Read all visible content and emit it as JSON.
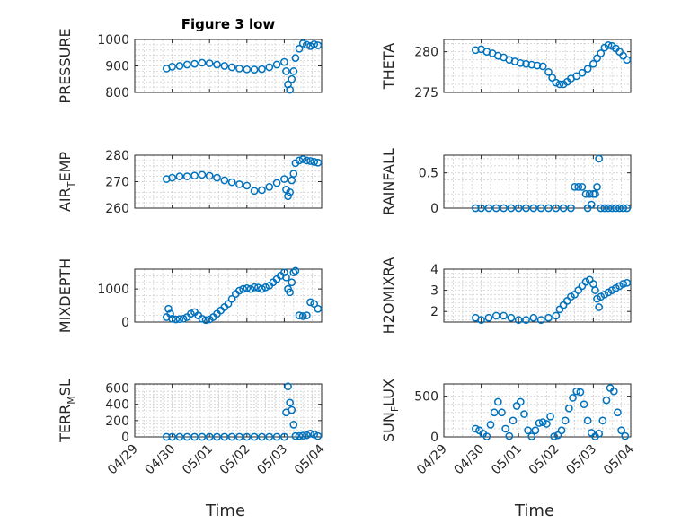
{
  "colors": {
    "marker": "#0072BD",
    "axis": "#262626",
    "grid": "#d0d0d0"
  },
  "figure_title": "Figure 3 low",
  "xlabel": "Time",
  "chart_data": [
    {
      "type": "scatter",
      "id": "pressure",
      "title": "Figure 3 low",
      "ylabel": [
        "PRESSURE"
      ],
      "xlim": [
        "04/29",
        "05/04"
      ],
      "ylim": [
        800,
        1000
      ],
      "yticks": [
        800,
        900,
        1000
      ],
      "xticks": [
        "04/29",
        "04/30",
        "05/01",
        "05/02",
        "05/03",
        "05/04"
      ],
      "series": [
        {
          "x_days": [
            0.85,
            1.0,
            1.2,
            1.4,
            1.6,
            1.8,
            2.0,
            2.2,
            2.4,
            2.6,
            2.8,
            3.0,
            3.2,
            3.4,
            3.6,
            3.8,
            4.0,
            4.05,
            4.1,
            4.15,
            4.2,
            4.25,
            4.3,
            4.4,
            4.5,
            4.6,
            4.7,
            4.8,
            4.9
          ],
          "y": [
            890,
            897,
            900,
            905,
            908,
            912,
            910,
            905,
            900,
            895,
            890,
            887,
            886,
            888,
            895,
            905,
            915,
            880,
            830,
            810,
            850,
            880,
            930,
            965,
            985,
            980,
            975,
            982,
            978
          ]
        }
      ]
    },
    {
      "type": "scatter",
      "id": "theta",
      "ylabel": [
        "THETA"
      ],
      "xlim": [
        "04/29",
        "05/04"
      ],
      "ylim": [
        275,
        281.5
      ],
      "yticks": [
        275,
        280
      ],
      "xticks": [
        "04/29",
        "04/30",
        "05/01",
        "05/02",
        "05/03",
        "05/04"
      ],
      "series": [
        {
          "x_days": [
            0.85,
            1.0,
            1.15,
            1.3,
            1.45,
            1.6,
            1.75,
            1.9,
            2.05,
            2.2,
            2.35,
            2.5,
            2.65,
            2.8,
            2.9,
            3.0,
            3.1,
            3.2,
            3.3,
            3.4,
            3.55,
            3.7,
            3.85,
            4.0,
            4.1,
            4.2,
            4.3,
            4.4,
            4.5,
            4.6,
            4.7,
            4.8,
            4.9
          ],
          "y": [
            280.2,
            280.3,
            280.0,
            279.8,
            279.5,
            279.3,
            279.0,
            278.8,
            278.6,
            278.5,
            278.4,
            278.3,
            278.2,
            277.5,
            276.8,
            276.2,
            276.0,
            276.0,
            276.3,
            276.7,
            277.0,
            277.4,
            277.9,
            278.5,
            279.2,
            279.8,
            280.5,
            280.8,
            280.7,
            280.4,
            280.0,
            279.5,
            279.0
          ]
        }
      ]
    },
    {
      "type": "scatter",
      "id": "air_temp",
      "ylabel": [
        "AIR",
        "T",
        "EMP"
      ],
      "xlim": [
        "04/29",
        "05/04"
      ],
      "ylim": [
        260,
        280
      ],
      "yticks": [
        260,
        270,
        280
      ],
      "xticks": [
        "04/29",
        "04/30",
        "05/01",
        "05/02",
        "05/03",
        "05/04"
      ],
      "series": [
        {
          "x_days": [
            0.85,
            1.0,
            1.2,
            1.4,
            1.6,
            1.8,
            2.0,
            2.2,
            2.4,
            2.6,
            2.8,
            3.0,
            3.2,
            3.4,
            3.6,
            3.8,
            4.0,
            4.05,
            4.1,
            4.15,
            4.2,
            4.25,
            4.3,
            4.4,
            4.5,
            4.6,
            4.7,
            4.8,
            4.9
          ],
          "y": [
            271,
            271.5,
            272,
            272,
            272.3,
            272.6,
            272.2,
            271.5,
            270.5,
            269.8,
            269,
            268.5,
            266.5,
            266.8,
            268,
            269.5,
            271,
            267,
            264.5,
            266,
            270.5,
            273,
            277,
            278,
            278.5,
            278,
            277.8,
            277.5,
            277.2
          ]
        }
      ]
    },
    {
      "type": "scatter",
      "id": "rainfall",
      "ylabel": [
        "RAINFALL"
      ],
      "xlim": [
        "04/29",
        "05/04"
      ],
      "ylim": [
        0,
        0.75
      ],
      "yticks": [
        0,
        0.5
      ],
      "xticks": [
        "04/29",
        "04/30",
        "05/01",
        "05/02",
        "05/03",
        "05/04"
      ],
      "series": [
        {
          "x_days": [
            0.85,
            1.0,
            1.2,
            1.4,
            1.6,
            1.8,
            2.0,
            2.2,
            2.4,
            2.6,
            2.8,
            3.0,
            3.2,
            3.4,
            3.5,
            3.6,
            3.7,
            3.8,
            3.85,
            3.9,
            3.95,
            4.0,
            4.05,
            4.1,
            4.15,
            4.2,
            4.3,
            4.4,
            4.5,
            4.6,
            4.7,
            4.8,
            4.9
          ],
          "y": [
            0,
            0,
            0,
            0,
            0,
            0,
            0,
            0,
            0,
            0,
            0,
            0,
            0,
            0,
            0.3,
            0.3,
            0.3,
            0.2,
            0,
            0.2,
            0.05,
            0.2,
            0.2,
            0.3,
            0.7,
            0,
            0,
            0,
            0,
            0,
            0,
            0,
            0
          ]
        }
      ]
    },
    {
      "type": "scatter",
      "id": "mixdepth",
      "ylabel": [
        "MIXDEPTH"
      ],
      "xlim": [
        "04/29",
        "05/04"
      ],
      "ylim": [
        0,
        1600
      ],
      "yticks": [
        0,
        1000
      ],
      "xticks": [
        "04/29",
        "04/30",
        "05/01",
        "05/02",
        "05/03",
        "05/04"
      ],
      "series": [
        {
          "x_days": [
            0.85,
            0.9,
            0.95,
            1.0,
            1.1,
            1.2,
            1.3,
            1.4,
            1.5,
            1.6,
            1.7,
            1.8,
            1.9,
            2.0,
            2.1,
            2.2,
            2.3,
            2.4,
            2.5,
            2.6,
            2.7,
            2.8,
            2.9,
            3.0,
            3.1,
            3.2,
            3.3,
            3.4,
            3.5,
            3.6,
            3.7,
            3.8,
            3.9,
            4.0,
            4.05,
            4.1,
            4.15,
            4.2,
            4.25,
            4.3,
            4.4,
            4.5,
            4.6,
            4.7,
            4.8,
            4.9
          ],
          "y": [
            150,
            400,
            250,
            100,
            80,
            90,
            100,
            150,
            250,
            300,
            200,
            100,
            60,
            80,
            150,
            250,
            350,
            450,
            550,
            700,
            850,
            950,
            1000,
            1020,
            1000,
            1050,
            1040,
            1000,
            1050,
            1100,
            1200,
            1300,
            1400,
            1500,
            1350,
            1000,
            900,
            1200,
            1500,
            1550,
            200,
            180,
            200,
            600,
            550,
            400
          ]
        }
      ]
    },
    {
      "type": "scatter",
      "id": "h2omixra",
      "ylabel": [
        "H2OMIXRA"
      ],
      "xlim": [
        "04/29",
        "05/04"
      ],
      "ylim": [
        1.5,
        4.0
      ],
      "yticks": [
        2,
        3,
        4
      ],
      "xticks": [
        "04/29",
        "04/30",
        "05/01",
        "05/02",
        "05/03",
        "05/04"
      ],
      "series": [
        {
          "x_days": [
            0.85,
            1.0,
            1.2,
            1.4,
            1.6,
            1.8,
            2.0,
            2.2,
            2.4,
            2.6,
            2.8,
            3.0,
            3.1,
            3.2,
            3.3,
            3.4,
            3.5,
            3.6,
            3.7,
            3.8,
            3.9,
            4.0,
            4.05,
            4.1,
            4.15,
            4.2,
            4.3,
            4.4,
            4.5,
            4.6,
            4.7,
            4.8,
            4.9
          ],
          "y": [
            1.7,
            1.6,
            1.7,
            1.8,
            1.8,
            1.7,
            1.6,
            1.6,
            1.7,
            1.6,
            1.7,
            1.8,
            2.1,
            2.3,
            2.5,
            2.7,
            2.8,
            3.0,
            3.2,
            3.4,
            3.5,
            3.3,
            3.0,
            2.6,
            2.2,
            2.7,
            2.8,
            2.9,
            3.0,
            3.1,
            3.2,
            3.3,
            3.35
          ]
        }
      ]
    },
    {
      "type": "scatter",
      "id": "terr_msl",
      "ylabel": [
        "TERR",
        "M",
        "SL"
      ],
      "xlim": [
        "04/29",
        "05/04"
      ],
      "ylim": [
        0,
        650
      ],
      "yticks": [
        0,
        200,
        400,
        600
      ],
      "xticks": [
        "04/29",
        "04/30",
        "05/01",
        "05/02",
        "05/03",
        "05/04"
      ],
      "series": [
        {
          "x_days": [
            0.85,
            1.0,
            1.2,
            1.4,
            1.6,
            1.8,
            2.0,
            2.2,
            2.4,
            2.6,
            2.8,
            3.0,
            3.2,
            3.4,
            3.6,
            3.8,
            4.0,
            4.05,
            4.1,
            4.15,
            4.2,
            4.25,
            4.3,
            4.4,
            4.5,
            4.6,
            4.7,
            4.8,
            4.9
          ],
          "y": [
            0,
            0,
            0,
            0,
            0,
            0,
            0,
            0,
            0,
            0,
            0,
            0,
            0,
            0,
            0,
            0,
            0,
            300,
            620,
            420,
            330,
            150,
            10,
            10,
            15,
            20,
            40,
            30,
            10
          ]
        }
      ]
    },
    {
      "type": "scatter",
      "id": "sun_flux",
      "ylabel": [
        "SUN",
        "F",
        "LUX"
      ],
      "xlim": [
        "04/29",
        "05/04"
      ],
      "ylim": [
        0,
        650
      ],
      "yticks": [
        0,
        500
      ],
      "xticks": [
        "04/29",
        "04/30",
        "05/01",
        "05/02",
        "05/03",
        "05/04"
      ],
      "series": [
        {
          "x_days": [
            0.85,
            0.95,
            1.05,
            1.15,
            1.25,
            1.35,
            1.45,
            1.55,
            1.65,
            1.75,
            1.85,
            1.95,
            2.05,
            2.15,
            2.25,
            2.35,
            2.45,
            2.55,
            2.65,
            2.75,
            2.85,
            2.95,
            3.05,
            3.15,
            3.25,
            3.35,
            3.45,
            3.55,
            3.65,
            3.75,
            3.85,
            3.95,
            4.05,
            4.15,
            4.25,
            4.35,
            4.45,
            4.55,
            4.65,
            4.75,
            4.85
          ],
          "y": [
            100,
            80,
            40,
            5,
            150,
            300,
            430,
            300,
            100,
            10,
            200,
            380,
            430,
            280,
            80,
            5,
            80,
            170,
            180,
            160,
            250,
            5,
            20,
            80,
            200,
            350,
            480,
            560,
            550,
            400,
            200,
            50,
            5,
            40,
            200,
            450,
            600,
            560,
            300,
            80,
            10
          ]
        }
      ]
    }
  ]
}
